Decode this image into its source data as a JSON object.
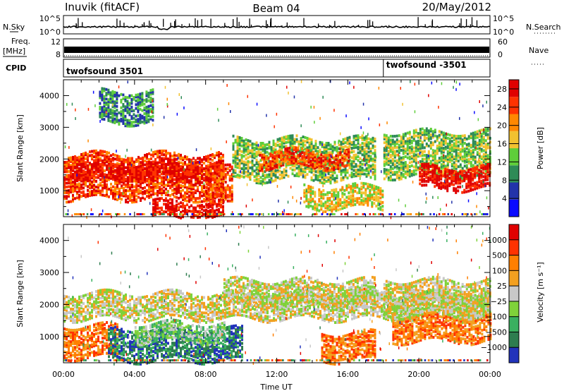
{
  "header": {
    "station": "Inuvik (fitACF)",
    "beam": "Beam 04",
    "date": "20/May/2012"
  },
  "panels": {
    "nsky": {
      "label": "N.Sky",
      "ticks": [
        "10^5",
        "10^0"
      ],
      "right_label": "N.Search",
      "right_ticks": [
        "10^5",
        "10^0"
      ]
    },
    "freq": {
      "label_line1": "Freq.",
      "label_line2": "[MHz]",
      "ticks": [
        "12",
        "8"
      ],
      "right_label": "Nave",
      "right_ticks": [
        "60",
        "0"
      ]
    },
    "cpid": {
      "label": "CPID",
      "segments": [
        {
          "text": "twofsound 3501",
          "start_hour": 0
        },
        {
          "text": "twofsound -3501",
          "start_hour": 18
        }
      ]
    }
  },
  "colors": {
    "power": [
      "#0a0aff",
      "#2233aa",
      "#2e8b57",
      "#5fce3a",
      "#f2c230",
      "#ff8800",
      "#ff3300",
      "#e00000"
    ],
    "velocity": [
      "#2233bb",
      "#2e7d4f",
      "#3ab060",
      "#7fd23a",
      "#c8c8c8",
      "#f3a020",
      "#ff7f00",
      "#ff3300",
      "#e00000"
    ]
  },
  "chart_data": [
    {
      "type": "heatmap",
      "name": "power",
      "xlabel": "",
      "ylabel": "Slant Range [km]",
      "xlim": [
        0,
        24
      ],
      "ylim": [
        180,
        4500
      ],
      "x_ticks": [
        "00:00",
        "04:00",
        "08:00",
        "12:00",
        "16:00",
        "20:00",
        "00:00"
      ],
      "y_ticks": [
        1000,
        2000,
        3000,
        4000
      ],
      "colorbar": {
        "label": "Power [dB]",
        "ticks": [
          "4",
          "8",
          "12",
          "16",
          "20",
          "24",
          "28"
        ],
        "range": [
          0,
          30
        ]
      },
      "bands": [
        {
          "t0": 0.0,
          "t1": 9.0,
          "r0": 800,
          "r1": 2200,
          "level": 6
        },
        {
          "t0": 0.0,
          "t1": 9.0,
          "r0": 1400,
          "r1": 1900,
          "level": 7
        },
        {
          "t0": 5.0,
          "t1": 9.0,
          "r0": 200,
          "r1": 700,
          "level": 7
        },
        {
          "t0": 8.0,
          "t1": 9.5,
          "r0": 600,
          "r1": 1800,
          "level": 6
        },
        {
          "t0": 9.5,
          "t1": 17.5,
          "r0": 1400,
          "r1": 2700,
          "level": 3
        },
        {
          "t0": 11.0,
          "t1": 16.0,
          "r0": 1800,
          "r1": 2300,
          "level": 6
        },
        {
          "t0": 13.5,
          "t1": 18.0,
          "r0": 500,
          "r1": 1200,
          "level": 4
        },
        {
          "t0": 18.0,
          "t1": 24.0,
          "r0": 1500,
          "r1": 2900,
          "level": 3
        },
        {
          "t0": 20.0,
          "t1": 24.0,
          "r0": 1100,
          "r1": 1800,
          "level": 7
        },
        {
          "t0": 2.0,
          "t1": 5.0,
          "r0": 3200,
          "r1": 4200,
          "level": 2
        }
      ]
    },
    {
      "type": "heatmap",
      "name": "velocity",
      "xlabel": "Time UT",
      "ylabel": "Slant Range [km]",
      "xlim": [
        0,
        24
      ],
      "ylim": [
        180,
        4500
      ],
      "x_ticks": [
        "00:00",
        "04:00",
        "08:00",
        "12:00",
        "16:00",
        "20:00",
        "00:00"
      ],
      "y_ticks": [
        1000,
        2000,
        3000,
        4000
      ],
      "colorbar": {
        "label": "Velocity [m s⁻¹]",
        "ticks": [
          "1000",
          "500",
          "100",
          "25",
          "−25",
          "−100",
          "−500",
          "−1000"
        ]
      },
      "bands": [
        {
          "t0": 0.0,
          "t1": 3.0,
          "r0": 400,
          "r1": 1400,
          "level": 6
        },
        {
          "t0": 2.5,
          "t1": 10.0,
          "r0": 300,
          "r1": 1300,
          "level": 1
        },
        {
          "t0": 4.0,
          "t1": 9.0,
          "r0": 900,
          "r1": 1500,
          "level": 3
        },
        {
          "t0": 0.0,
          "t1": 24.0,
          "r0": 1600,
          "r1": 2400,
          "level": 4
        },
        {
          "t0": 9.0,
          "t1": 17.5,
          "r0": 2000,
          "r1": 2800,
          "level": 4
        },
        {
          "t0": 14.5,
          "t1": 17.5,
          "r0": 300,
          "r1": 1200,
          "level": 6
        },
        {
          "t0": 18.5,
          "t1": 24.0,
          "r0": 900,
          "r1": 1700,
          "level": 6
        },
        {
          "t0": 18.0,
          "t1": 24.0,
          "r0": 1700,
          "r1": 2800,
          "level": 4
        }
      ]
    }
  ]
}
